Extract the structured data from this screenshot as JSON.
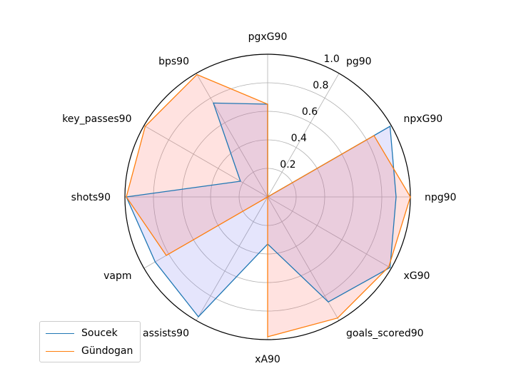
{
  "chart_data": {
    "type": "radar",
    "categories": [
      "pgxG90",
      "pg90",
      "npxG90",
      "npg90",
      "xG90",
      "goals_scored90",
      "xA90",
      "assists90",
      "vapm",
      "shots90",
      "key_passes90",
      "bps90"
    ],
    "radial_ticks": [
      0.2,
      0.4,
      0.6,
      0.8,
      1.0
    ],
    "radial_tick_labels": [
      "0.2",
      "0.4",
      "0.6",
      "0.8",
      "1.0"
    ],
    "rlim": [
      0,
      1.0
    ],
    "series": [
      {
        "name": "Soucek",
        "color": "#1f77b4",
        "values": [
          0.65,
          0.0,
          0.99,
          0.9,
          0.99,
          0.85,
          0.33,
          0.97,
          0.91,
          0.99,
          0.22,
          0.76
        ]
      },
      {
        "name": "Gündogan",
        "color": "#ff7f0e",
        "values": [
          0.65,
          0.0,
          0.86,
          1.0,
          0.98,
          0.98,
          0.98,
          0.0,
          0.82,
          0.99,
          0.99,
          0.99
        ]
      }
    ],
    "legend_position": "lower-left"
  },
  "legend": {
    "items": [
      {
        "label": "Soucek",
        "color": "#1f77b4"
      },
      {
        "label": "Gündogan",
        "color": "#ff7f0e"
      }
    ]
  }
}
